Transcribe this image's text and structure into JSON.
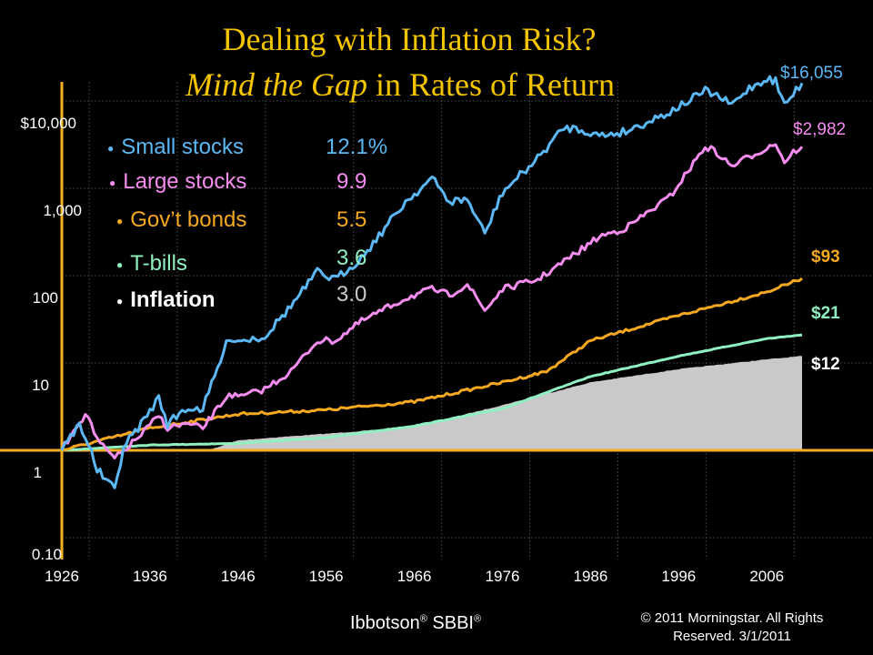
{
  "title": {
    "line1": "Dealing with Inflation Risk?",
    "line2_italic": "Mind the Gap",
    "line2_rest": " in Rates of Return"
  },
  "footer": {
    "brand": "Ibbotson",
    "brand_mark": "®",
    "brand_product": " SBBI",
    "copyright_line1": "© 2011 Morningstar. All Rights",
    "copyright_line2": "Reserved. 3/1/2011"
  },
  "colors": {
    "small_stocks": "#5bb8f5",
    "large_stocks": "#f58cf0",
    "govt_bonds": "#f5a820",
    "tbills": "#8ff0c0",
    "inflation": "#c9c9c9",
    "axis": "#f5b020",
    "grid": "#3a3a3a",
    "title": "#f5c400"
  },
  "chart_data": {
    "type": "line",
    "title": "Dealing with Inflation Risk? Mind the Gap in Rates of Return",
    "y_scale": "log",
    "ylim": [
      0.1,
      30000
    ],
    "xlim": [
      1926,
      2010
    ],
    "y_tick_labels": [
      "$10,000",
      "1,000",
      "100",
      "10",
      "1",
      "0.10"
    ],
    "y_tick_values": [
      10000,
      1000,
      100,
      10,
      1,
      0.1
    ],
    "x_tick_labels": [
      "1926",
      "1936",
      "1946",
      "1956",
      "1966",
      "1976",
      "1986",
      "1996",
      "2006"
    ],
    "grid": true,
    "legend": [
      {
        "name": "Small stocks",
        "return": "12.1%"
      },
      {
        "name": "Large stocks",
        "return": "9.9"
      },
      {
        "name": "Gov’t bonds",
        "return": "5.5"
      },
      {
        "name": "T-bills",
        "return": "3.6"
      },
      {
        "name": "Inflation",
        "return": "3.0"
      }
    ],
    "end_labels": {
      "small_stocks": "$16,055",
      "large_stocks": "$2,982",
      "govt_bonds": "$93",
      "tbills": "$21",
      "inflation": "$12"
    },
    "series": [
      {
        "name": "Small stocks",
        "x": [
          1926,
          1928,
          1929,
          1930,
          1932,
          1933,
          1935,
          1937,
          1938,
          1940,
          1942,
          1945,
          1946,
          1949,
          1952,
          1955,
          1957,
          1960,
          1965,
          1968,
          1970,
          1972,
          1974,
          1976,
          1980,
          1983,
          1985,
          1987,
          1990,
          1995,
          1999,
          2000,
          2002,
          2004,
          2006,
          2007,
          2008,
          2009,
          2010
        ],
        "y": [
          1,
          2.0,
          1.2,
          0.6,
          0.35,
          1.1,
          2.0,
          4,
          2.0,
          3,
          3,
          20,
          18,
          20,
          45,
          110,
          90,
          160,
          700,
          1300,
          700,
          750,
          300,
          900,
          2200,
          5000,
          4700,
          4000,
          4500,
          7500,
          13000,
          12000,
          9000,
          14000,
          18000,
          17000,
          9000,
          12000,
          16055
        ]
      },
      {
        "name": "Large stocks",
        "x": [
          1926,
          1928,
          1929,
          1930,
          1932,
          1935,
          1937,
          1938,
          1940,
          1942,
          1945,
          1946,
          1949,
          1952,
          1955,
          1957,
          1960,
          1965,
          1968,
          1970,
          1972,
          1974,
          1976,
          1980,
          1985,
          1987,
          1990,
          1995,
          1999,
          2000,
          2002,
          2004,
          2006,
          2007,
          2008,
          2009,
          2010
        ],
        "y": [
          1,
          2.2,
          2.5,
          1.3,
          0.8,
          1.5,
          2.5,
          1.8,
          2.0,
          1.8,
          4.5,
          4,
          5,
          8,
          18,
          18,
          30,
          55,
          70,
          60,
          80,
          40,
          70,
          90,
          200,
          280,
          350,
          800,
          3000,
          2700,
          1800,
          2300,
          2900,
          3300,
          2000,
          2600,
          2982
        ]
      },
      {
        "name": "Gov’t bonds",
        "x": [
          1926,
          1936,
          1946,
          1956,
          1966,
          1976,
          1981,
          1986,
          1996,
          2006,
          2010
        ],
        "y": [
          1,
          1.8,
          2.6,
          2.9,
          3.6,
          6,
          8,
          18,
          35,
          65,
          93
        ]
      },
      {
        "name": "T-bills",
        "x": [
          1926,
          1936,
          1946,
          1956,
          1966,
          1976,
          1986,
          1996,
          2006,
          2010
        ],
        "y": [
          1,
          1.15,
          1.2,
          1.4,
          1.9,
          3,
          7,
          12,
          19,
          21
        ]
      },
      {
        "name": "Inflation",
        "x": [
          1926,
          1932,
          1940,
          1946,
          1950,
          1956,
          1966,
          1976,
          1986,
          1996,
          2006,
          2010
        ],
        "y": [
          1,
          0.78,
          0.82,
          1.3,
          1.4,
          1.55,
          1.85,
          3.3,
          6,
          8.5,
          11,
          12
        ]
      }
    ]
  }
}
